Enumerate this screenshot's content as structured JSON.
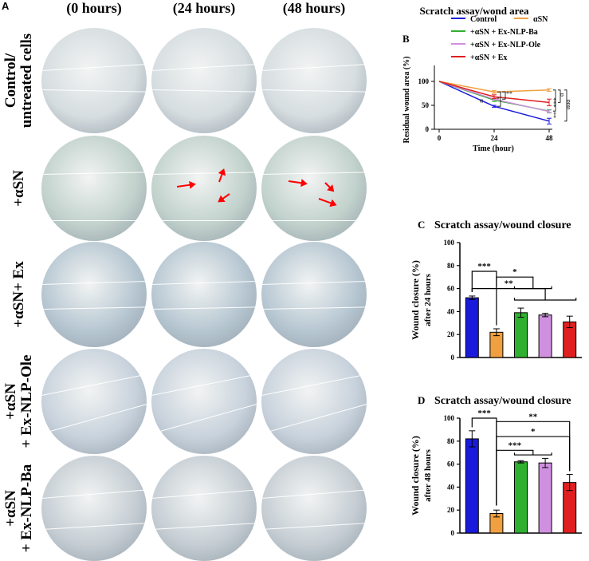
{
  "panel_a": {
    "letter": "A",
    "columns": [
      "(0 hours)",
      "(24 hours)",
      "(48 hours)"
    ],
    "rows": [
      {
        "label": "Control/\nuntreated cells",
        "tone": "#d6dde0",
        "lines": [
          [
            0.4,
            0.34
          ],
          [
            0.58,
            0.6
          ]
        ]
      },
      {
        "label": "+αSN",
        "tone": "#c2d2cc",
        "lines": [
          [
            0.36,
            0.34
          ],
          [
            0.8,
            0.8
          ]
        ]
      },
      {
        "label": "+αSN+ Ex",
        "tone": "#b7c7d2",
        "lines": [
          [
            0.4,
            0.37
          ],
          [
            0.64,
            0.62
          ]
        ]
      },
      {
        "label": "+αSN\n+ Ex-NLP-Ole",
        "tone": "#c8d2dc",
        "lines": [
          [
            0.44,
            0.24
          ],
          [
            0.8,
            0.52
          ]
        ]
      },
      {
        "label": "+αSN\n+ Ex-NLP-Ba",
        "tone": "#c6ced4",
        "lines": [
          [
            0.4,
            0.32
          ],
          [
            0.7,
            0.64
          ]
        ]
      }
    ]
  },
  "chart_data": [
    {
      "id": "B",
      "type": "line",
      "title": "Scratch assay/wond area",
      "xlabel": "Time (hour)",
      "ylabel": "Residual wound area (%)",
      "x": [
        0,
        24,
        48
      ],
      "xticks": [
        "0",
        "24",
        "48"
      ],
      "ylim": [
        0,
        150
      ],
      "yticks": [
        "0",
        "50",
        "100",
        "150"
      ],
      "series": [
        {
          "name": "Control",
          "color": "#1a1adc",
          "values": [
            100,
            48,
            17
          ],
          "err": [
            0,
            2,
            6
          ]
        },
        {
          "name": "αSN",
          "color": "#f0a040",
          "values": [
            100,
            78,
            82
          ],
          "err": [
            0,
            3,
            3
          ]
        },
        {
          "name": "+αSN + Ex-NLP-Ba",
          "color": "#30b030",
          "values": [
            100,
            61,
            38
          ],
          "err": [
            0,
            3,
            3
          ]
        },
        {
          "name": "+αSN + Ex-NLP-Ole",
          "color": "#d090e0",
          "values": [
            100,
            63,
            37
          ],
          "err": [
            0,
            2,
            3
          ]
        },
        {
          "name": "+αSN + Ex",
          "color": "#e02020",
          "values": [
            100,
            68,
            56
          ],
          "err": [
            0,
            4,
            7
          ]
        }
      ],
      "annotations": [
        "α",
        "*",
        "**",
        "**",
        "***",
        "αα",
        "α",
        "ααα"
      ]
    },
    {
      "id": "C",
      "type": "bar",
      "title": "Scratch assay/wound closure",
      "ylabel": "Wound closure (%)",
      "ylabel2": "after 24 hours",
      "ylim": [
        0,
        100
      ],
      "yticks": [
        "0",
        "20",
        "40",
        "60",
        "80",
        "100"
      ],
      "categories": [
        "Control",
        "αSN",
        "+αSN + Ex-NLP-Ba",
        "+αSN + Ex-NLP-Ole",
        "+αSN + Ex"
      ],
      "colors": [
        "#1a1adc",
        "#f0a040",
        "#30b030",
        "#d090e0",
        "#e02020"
      ],
      "values": [
        52,
        22,
        39,
        37,
        31
      ],
      "err": [
        1.5,
        3,
        4,
        1.5,
        5
      ],
      "significance": [
        "***",
        "*",
        "**"
      ]
    },
    {
      "id": "D",
      "type": "bar",
      "title": "Scratch assay/wound closure",
      "ylabel": "Wound closure (%)",
      "ylabel2": "after 48 hours",
      "ylim": [
        0,
        100
      ],
      "yticks": [
        "0",
        "20",
        "40",
        "60",
        "80",
        "100"
      ],
      "categories": [
        "Control",
        "αSN",
        "+αSN + Ex-NLP-Ba",
        "+αSN + Ex-NLP-Ole",
        "+αSN + Ex"
      ],
      "colors": [
        "#1a1adc",
        "#f0a040",
        "#30b030",
        "#d090e0",
        "#e02020"
      ],
      "values": [
        82,
        17,
        62,
        61,
        44
      ],
      "err": [
        7,
        3,
        1,
        4,
        7
      ],
      "significance": [
        "***",
        "**",
        "*",
        "***"
      ]
    }
  ]
}
